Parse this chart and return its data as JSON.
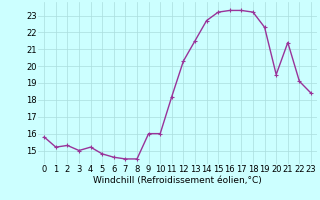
{
  "x": [
    0,
    1,
    2,
    3,
    4,
    5,
    6,
    7,
    8,
    9,
    10,
    11,
    12,
    13,
    14,
    15,
    16,
    17,
    18,
    19,
    20,
    21,
    22,
    23
  ],
  "y": [
    15.8,
    15.2,
    15.3,
    15.0,
    15.2,
    14.8,
    14.6,
    14.5,
    14.5,
    16.0,
    16.0,
    18.2,
    20.3,
    21.5,
    22.7,
    23.2,
    23.3,
    23.3,
    23.2,
    22.3,
    19.5,
    21.4,
    19.1,
    18.4
  ],
  "line_color": "#993399",
  "marker": "+",
  "marker_size": 3,
  "bg_color": "#ccffff",
  "grid_color": "#aadddd",
  "xlabel": "Windchill (Refroidissement éolien,°C)",
  "xlabel_fontsize": 6.5,
  "ylabel_ticks": [
    15,
    16,
    17,
    18,
    19,
    20,
    21,
    22,
    23
  ],
  "ylim": [
    14.2,
    23.8
  ],
  "xlim": [
    -0.5,
    23.5
  ],
  "xticks": [
    0,
    1,
    2,
    3,
    4,
    5,
    6,
    7,
    8,
    9,
    10,
    11,
    12,
    13,
    14,
    15,
    16,
    17,
    18,
    19,
    20,
    21,
    22,
    23
  ],
  "tick_fontsize": 6,
  "line_width": 1.0,
  "marker_edge_width": 0.8
}
